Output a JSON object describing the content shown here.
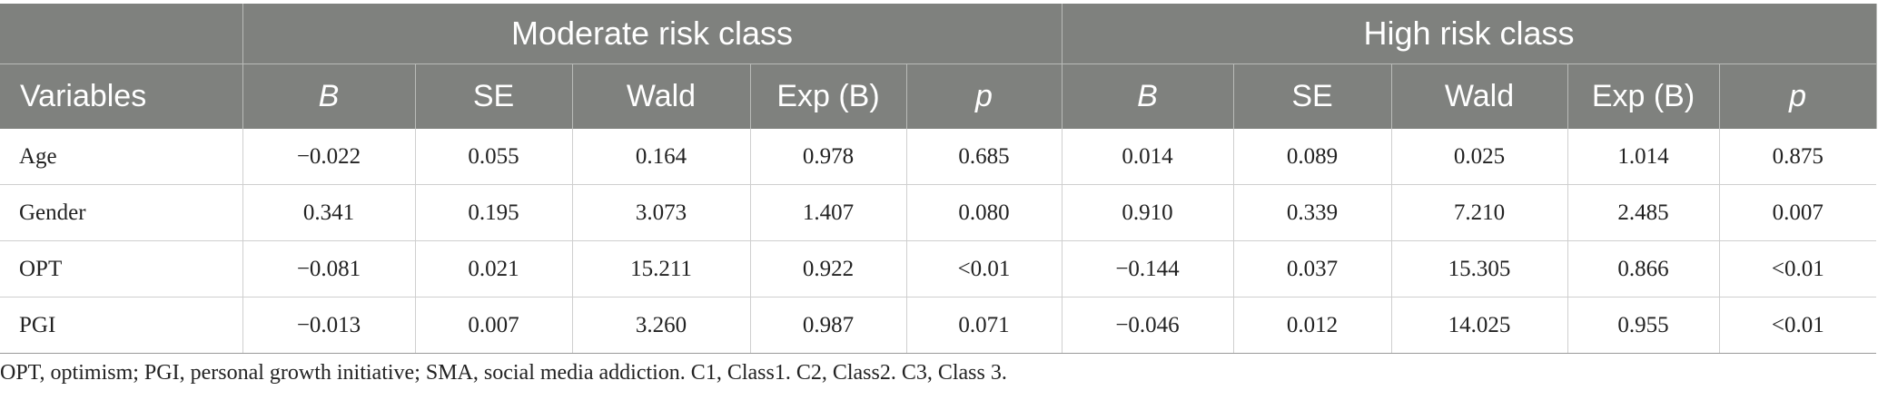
{
  "groups": {
    "moderate": "Moderate risk class",
    "high": "High risk class"
  },
  "columns": {
    "variables": "Variables",
    "b": "B",
    "se": "SE",
    "wald": "Wald",
    "exp": "Exp (B)",
    "p": "p"
  },
  "rows": [
    {
      "var": "Age",
      "m": [
        "−0.022",
        "0.055",
        "0.164",
        "0.978",
        "0.685"
      ],
      "h": [
        "0.014",
        "0.089",
        "0.025",
        "1.014",
        "0.875"
      ]
    },
    {
      "var": "Gender",
      "m": [
        "0.341",
        "0.195",
        "3.073",
        "1.407",
        "0.080"
      ],
      "h": [
        "0.910",
        "0.339",
        "7.210",
        "2.485",
        "0.007"
      ]
    },
    {
      "var": "OPT",
      "m": [
        "−0.081",
        "0.021",
        "15.211",
        "0.922",
        "<0.01"
      ],
      "h": [
        "−0.144",
        "0.037",
        "15.305",
        "0.866",
        "<0.01"
      ]
    },
    {
      "var": "PGI",
      "m": [
        "−0.013",
        "0.007",
        "3.260",
        "0.987",
        "0.071"
      ],
      "h": [
        "−0.046",
        "0.012",
        "14.025",
        "0.955",
        "<0.01"
      ]
    }
  ],
  "footnote": "OPT, optimism; PGI, personal growth initiative; SMA, social media addiction. C1, Class1. C2, Class2. C3, Class 3."
}
